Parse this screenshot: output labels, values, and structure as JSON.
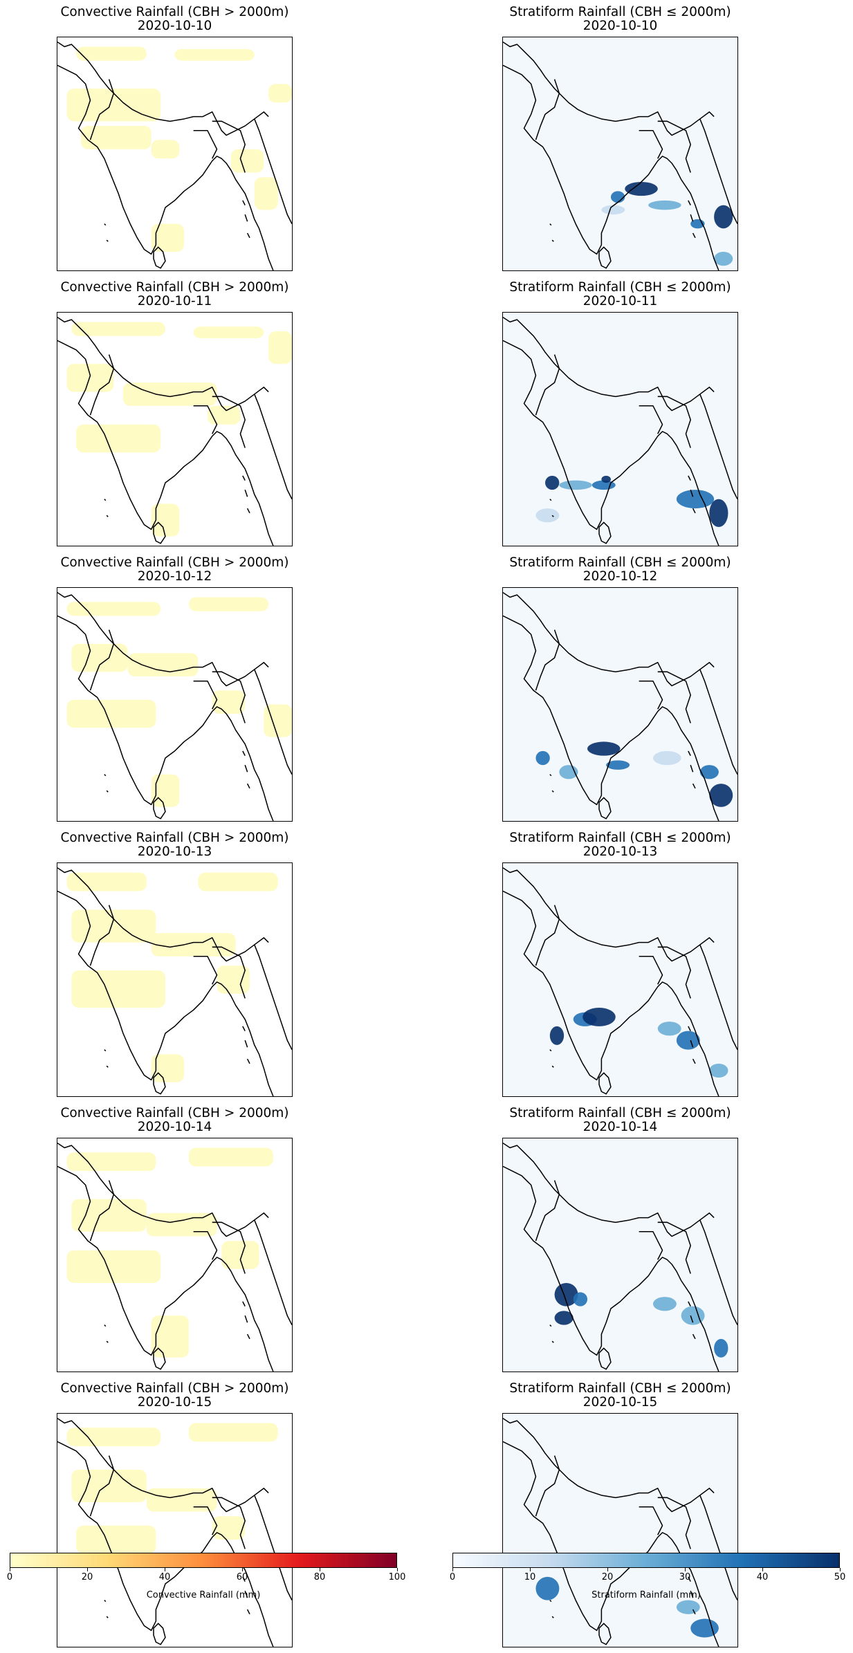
{
  "panels": [
    {
      "row": 0,
      "col": 0,
      "title": "Convective Rainfall (CBH > 2000m)",
      "date": "2020-10-10",
      "kind": "convective"
    },
    {
      "row": 0,
      "col": 1,
      "title": "Stratiform Rainfall (CBH ≤ 2000m)",
      "date": "2020-10-10",
      "kind": "stratiform"
    },
    {
      "row": 1,
      "col": 0,
      "title": "Convective Rainfall (CBH > 2000m)",
      "date": "2020-10-11",
      "kind": "convective"
    },
    {
      "row": 1,
      "col": 1,
      "title": "Stratiform Rainfall (CBH ≤ 2000m)",
      "date": "2020-10-11",
      "kind": "stratiform"
    },
    {
      "row": 2,
      "col": 0,
      "title": "Convective Rainfall (CBH > 2000m)",
      "date": "2020-10-12",
      "kind": "convective"
    },
    {
      "row": 2,
      "col": 1,
      "title": "Stratiform Rainfall (CBH ≤ 2000m)",
      "date": "2020-10-12",
      "kind": "stratiform"
    },
    {
      "row": 3,
      "col": 0,
      "title": "Convective Rainfall (CBH > 2000m)",
      "date": "2020-10-13",
      "kind": "convective"
    },
    {
      "row": 3,
      "col": 1,
      "title": "Stratiform Rainfall (CBH ≤ 2000m)",
      "date": "2020-10-13",
      "kind": "stratiform"
    },
    {
      "row": 4,
      "col": 0,
      "title": "Convective Rainfall (CBH > 2000m)",
      "date": "2020-10-14",
      "kind": "convective"
    },
    {
      "row": 4,
      "col": 1,
      "title": "Stratiform Rainfall (CBH ≤ 2000m)",
      "date": "2020-10-14",
      "kind": "stratiform"
    },
    {
      "row": 5,
      "col": 0,
      "title": "Convective Rainfall (CBH > 2000m)",
      "date": "2020-10-15",
      "kind": "convective"
    },
    {
      "row": 5,
      "col": 1,
      "title": "Stratiform Rainfall (CBH ≤ 2000m)",
      "date": "2020-10-15",
      "kind": "stratiform"
    }
  ],
  "colorbars": {
    "convective": {
      "label": "Convective Rainfall (mm)",
      "min": 0,
      "max": 100,
      "ticks": [
        "0",
        "20",
        "40",
        "60",
        "80",
        "100"
      ],
      "colormap": "YlOrRd",
      "colors": [
        "#ffffcc",
        "#fed976",
        "#fd8d3c",
        "#e31a1c",
        "#800026"
      ]
    },
    "stratiform": {
      "label": "Stratiform Rainfall (mm)",
      "min": 0,
      "max": 50,
      "ticks": [
        "0",
        "10",
        "20",
        "30",
        "40",
        "50"
      ],
      "colormap": "Blues",
      "colors": [
        "#f7fbff",
        "#c6dbef",
        "#6baed6",
        "#2171b5",
        "#08306b"
      ]
    }
  }
}
